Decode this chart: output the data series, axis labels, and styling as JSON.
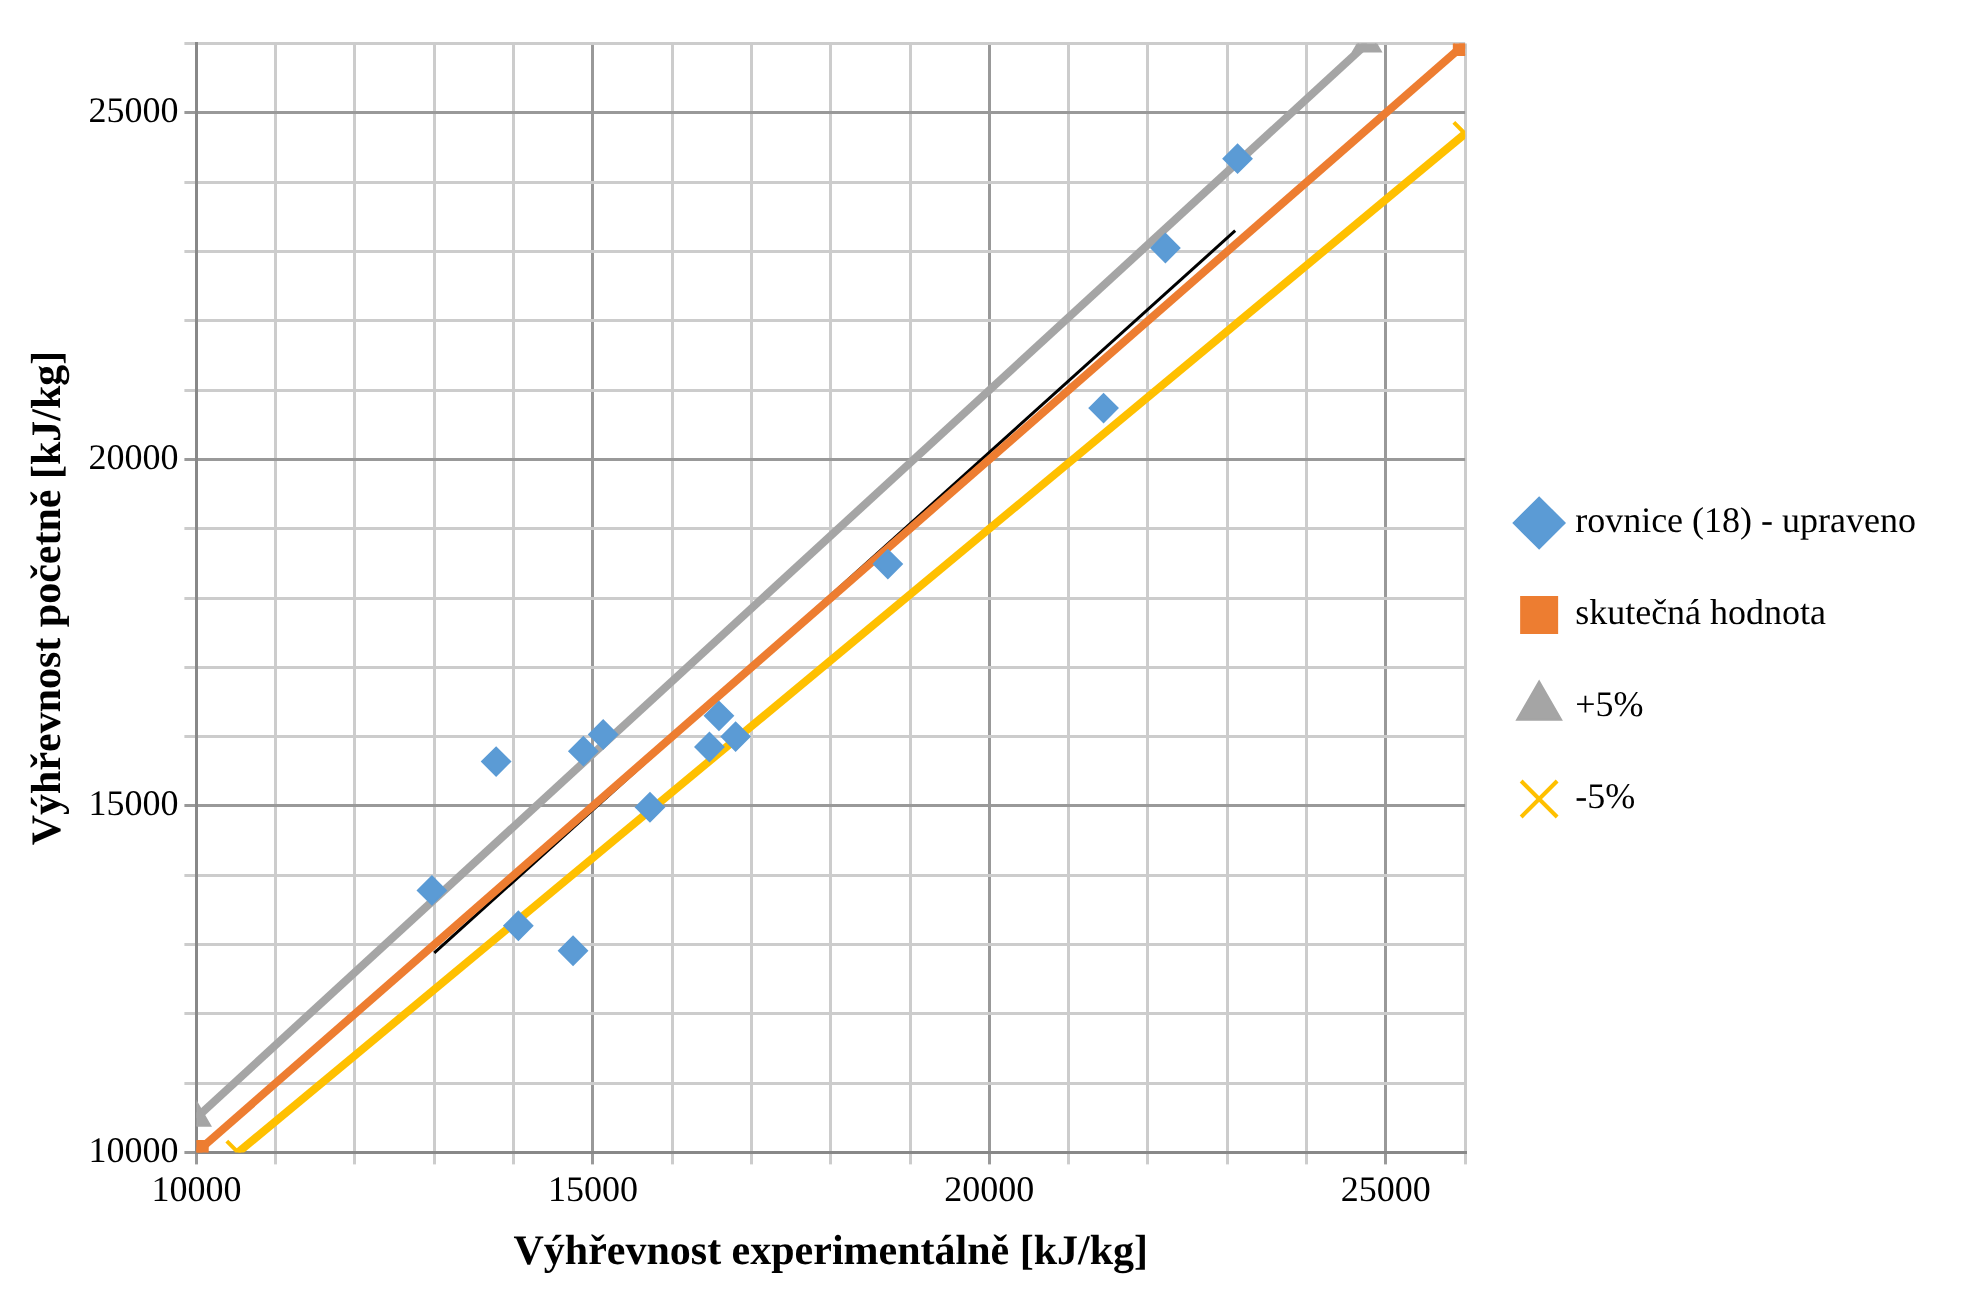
{
  "chart_data": {
    "type": "scatter",
    "xlabel": "Výhřevnost experimentálně [kJ/kg]",
    "ylabel": "Výhřevnost početně [kJ/kg]",
    "xlim": [
      10000,
      26000
    ],
    "ylim": [
      10000,
      26000
    ],
    "xticks": [
      10000,
      {
        "value": 11000,
        "label": null
      },
      {
        "value": 12000,
        "label": null
      },
      {
        "value": 13000,
        "label": null
      },
      {
        "value": 14000,
        "label": null
      },
      15000,
      {
        "value": 16000,
        "label": null
      },
      {
        "value": 17000,
        "label": null
      },
      {
        "value": 18000,
        "label": null
      },
      {
        "value": 19000,
        "label": null
      },
      20000,
      {
        "value": 21000,
        "label": null
      },
      {
        "value": 22000,
        "label": null
      },
      {
        "value": 23000,
        "label": null
      },
      {
        "value": 24000,
        "label": null
      },
      25000,
      {
        "value": 26000,
        "label": null
      }
    ],
    "yticks": [
      10000,
      {
        "value": 11000,
        "label": null
      },
      {
        "value": 12000,
        "label": null
      },
      {
        "value": 13000,
        "label": null
      },
      {
        "value": 14000,
        "label": null
      },
      15000,
      {
        "value": 16000,
        "label": null
      },
      {
        "value": 17000,
        "label": null
      },
      {
        "value": 18000,
        "label": null
      },
      {
        "value": 19000,
        "label": null
      },
      20000,
      {
        "value": 21000,
        "label": null
      },
      {
        "value": 22000,
        "label": null
      },
      {
        "value": 23000,
        "label": null
      },
      {
        "value": 24000,
        "label": null
      },
      25000,
      {
        "value": 26000,
        "label": null
      }
    ],
    "grid": true,
    "legend": "right",
    "series": [
      {
        "name": "rovnice (18) - upraveno",
        "type": "scatter",
        "marker": "diamond",
        "color": "#5b9bd5",
        "x": [
          12970,
          13780,
          14060,
          14750,
          14880,
          15130,
          15720,
          16470,
          16590,
          16800,
          18720,
          21440,
          22220,
          23130
        ],
        "values": [
          13780,
          15640,
          13270,
          12910,
          15790,
          16030,
          14980,
          15850,
          16300,
          16000,
          18490,
          20740,
          23050,
          24340
        ]
      },
      {
        "name": "skutečná hodnota",
        "type": "line",
        "marker": "square",
        "color": "#ed7d31",
        "x": [
          10000,
          26000
        ],
        "values": [
          10000,
          26000
        ]
      },
      {
        "name": "+5%",
        "type": "line",
        "marker": "triangle",
        "color": "#a5a5a5",
        "x": [
          10000,
          24762
        ],
        "values": [
          10500,
          26000
        ]
      },
      {
        "name": "-5%",
        "type": "line",
        "marker": "cross",
        "color": "#ffc000",
        "x": [
          10526,
          26000
        ],
        "values": [
          10000,
          24700
        ]
      },
      {
        "type": "line",
        "marker": "none",
        "color": "#000000",
        "x": [
          13000,
          23100
        ],
        "values": [
          12880,
          23300
        ]
      }
    ]
  }
}
